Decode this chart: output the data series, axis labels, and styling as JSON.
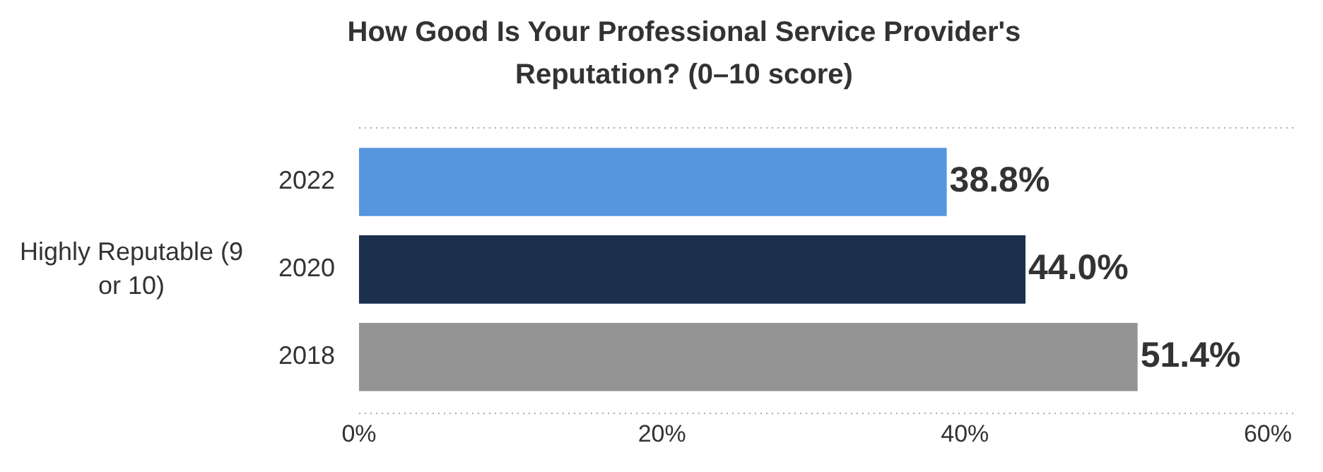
{
  "chart_data": {
    "type": "bar",
    "orientation": "horizontal",
    "title": "How Good Is Your Professional Service Provider's Reputation? (0–10 score)",
    "ylabel": "Highly Reputable (9 or 10)",
    "categories": [
      "2022",
      "2020",
      "2018"
    ],
    "values": [
      38.8,
      44.0,
      51.4
    ],
    "colors": [
      "#5596de",
      "#1c2f4d",
      "#939393"
    ],
    "value_labels": [
      "38.8%",
      "44.0%",
      "51.4%"
    ],
    "xlim": [
      0,
      60
    ],
    "xticks": [
      {
        "value": 0,
        "label": "0%"
      },
      {
        "value": 20,
        "label": "20%"
      },
      {
        "value": 40,
        "label": "40%"
      },
      {
        "value": 60,
        "label": "60%"
      }
    ],
    "grid": false,
    "legend": false
  }
}
